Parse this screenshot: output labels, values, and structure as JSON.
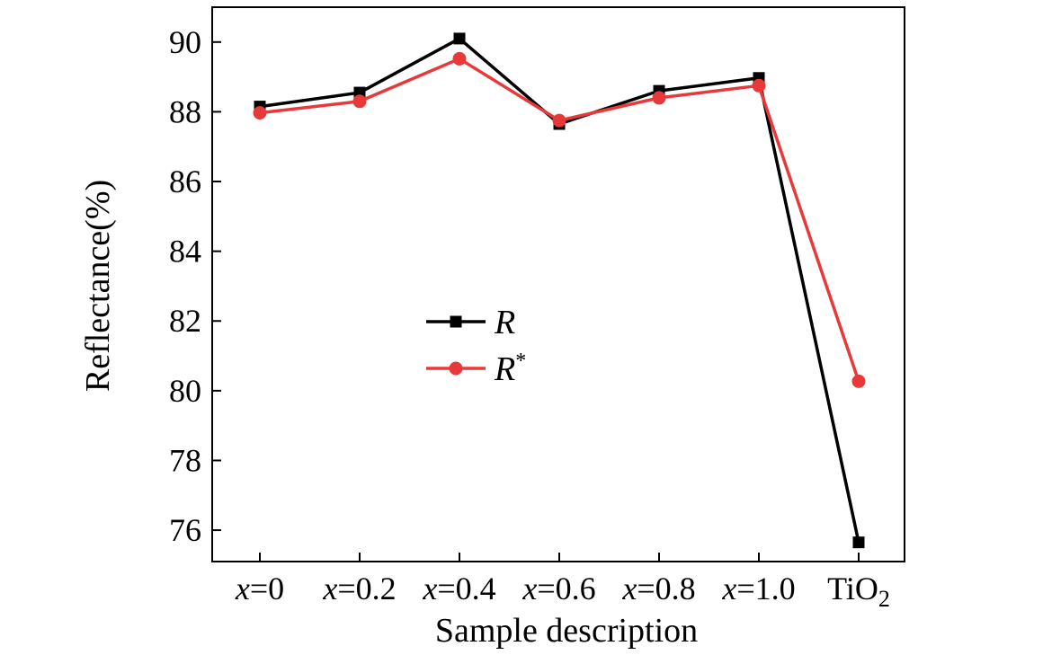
{
  "chart_data": {
    "type": "line",
    "title": "",
    "xlabel": "Sample description",
    "ylabel": "Reflectance(%)",
    "ylim": [
      75.1,
      91.0
    ],
    "yticks": [
      76,
      78,
      80,
      82,
      84,
      86,
      88,
      90
    ],
    "categories": [
      {
        "var": "x",
        "op": "=",
        "num": "0"
      },
      {
        "var": "x",
        "op": "=",
        "num": "0.2"
      },
      {
        "var": "x",
        "op": "=",
        "num": "0.4"
      },
      {
        "var": "x",
        "op": "=",
        "num": "0.6"
      },
      {
        "var": "x",
        "op": "=",
        "num": "0.8"
      },
      {
        "var": "x",
        "op": "=",
        "num": "1.0"
      },
      {
        "var": "",
        "op": "TiO",
        "num": "2"
      }
    ],
    "series": [
      {
        "name": "R",
        "sup": "",
        "color": "#000000",
        "marker": "square",
        "values": [
          88.15,
          88.55,
          90.1,
          87.65,
          88.6,
          88.97,
          75.65
        ]
      },
      {
        "name": "R",
        "sup": "*",
        "color": "#e8393a",
        "marker": "circle",
        "values": [
          87.97,
          88.3,
          89.52,
          87.75,
          88.4,
          88.75,
          80.27
        ]
      }
    ],
    "legend_position": "center-left",
    "grid": false
  }
}
